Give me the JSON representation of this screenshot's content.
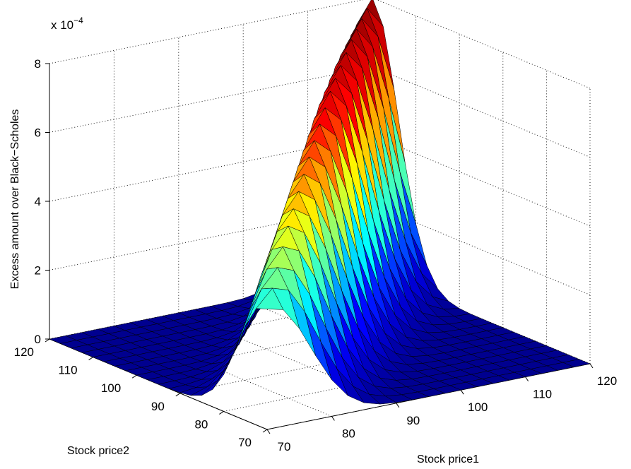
{
  "chart_data": {
    "type": "surface",
    "title": "",
    "xlabel": "Stock price1",
    "ylabel": "Stock price2",
    "zlabel": "Excess amount over Black−Scholes",
    "z_scale_label": "x 10",
    "z_scale_exponent": "−4",
    "z_multiplier": 0.0001,
    "xlim": [
      70,
      120
    ],
    "ylim": [
      70,
      120
    ],
    "zlim": [
      0,
      8
    ],
    "x_ticks": [
      70,
      80,
      90,
      100,
      110,
      120
    ],
    "y_ticks": [
      70,
      80,
      90,
      100,
      110,
      120
    ],
    "z_ticks": [
      0,
      2,
      4,
      6,
      8
    ],
    "x_tick_labels": [
      "70",
      "80",
      "90",
      "100",
      "110",
      "120"
    ],
    "y_tick_labels": [
      "70",
      "80",
      "90",
      "100",
      "110",
      "120"
    ],
    "z_tick_labels": [
      "0",
      "2",
      "4",
      "6",
      "8"
    ],
    "grid": true,
    "colormap": "jet",
    "colormap_colors": [
      "#00008f",
      "#0000ff",
      "#00ffff",
      "#ffff00",
      "#ff0000",
      "#800000"
    ],
    "edge_color": "#000000",
    "surface": {
      "x": [
        70,
        72.5,
        75,
        77.5,
        80,
        82.5,
        85,
        87.5,
        90,
        92.5,
        95,
        97.5,
        100,
        102.5,
        105,
        107.5,
        110,
        112.5,
        115,
        117.5,
        120
      ],
      "y": [
        70,
        72.5,
        75,
        77.5,
        80,
        82.5,
        85,
        87.5,
        90,
        92.5,
        95,
        97.5,
        100,
        102.5,
        105,
        107.5,
        110,
        112.5,
        115,
        117.5,
        120
      ],
      "ridge_along": "x = y",
      "ridge_peak_values": [
        {
          "price": 70,
          "z": 3.5
        },
        {
          "price": 80,
          "z": 5.0
        },
        {
          "price": 90,
          "z": 6.1
        },
        {
          "price": 100,
          "z": 7.1
        },
        {
          "price": 110,
          "z": 7.7
        },
        {
          "price": 120,
          "z": 8.0
        }
      ],
      "ridge_width": 6,
      "peak_z": 8.0,
      "floor_z": 0
    }
  }
}
